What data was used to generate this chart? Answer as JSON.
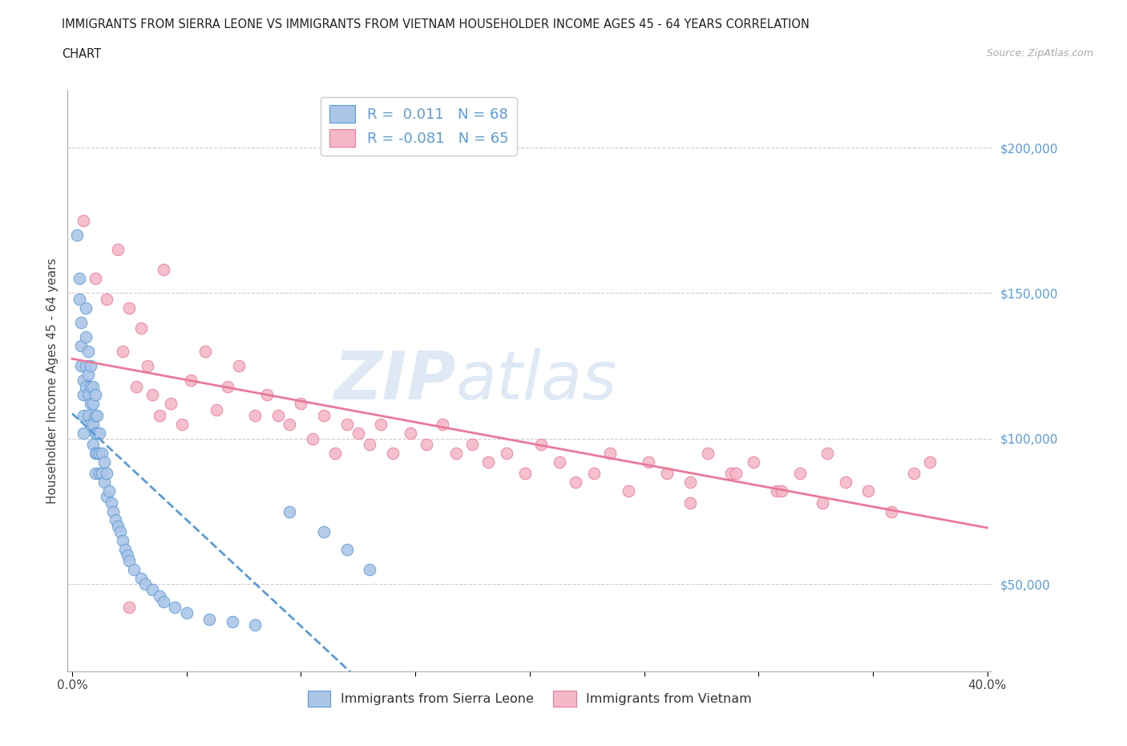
{
  "title_line1": "IMMIGRANTS FROM SIERRA LEONE VS IMMIGRANTS FROM VIETNAM HOUSEHOLDER INCOME AGES 45 - 64 YEARS CORRELATION",
  "title_line2": "CHART",
  "source_text": "Source: ZipAtlas.com",
  "ylabel": "Householder Income Ages 45 - 64 years",
  "xlim": [
    -0.002,
    0.402
  ],
  "ylim": [
    20000,
    220000
  ],
  "yticks": [
    50000,
    100000,
    150000,
    200000
  ],
  "ytick_labels": [
    "$50,000",
    "$100,000",
    "$150,000",
    "$200,000"
  ],
  "xticks": [
    0.0,
    0.05,
    0.1,
    0.15,
    0.2,
    0.25,
    0.3,
    0.35,
    0.4
  ],
  "xtick_labels": [
    "0.0%",
    "",
    "",
    "",
    "",
    "",
    "",
    "",
    "40.0%"
  ],
  "r_sierra": 0.011,
  "n_sierra": 68,
  "r_vietnam": -0.081,
  "n_vietnam": 65,
  "color_sierra_fill": "#adc6e8",
  "color_sierra_edge": "#5b9bd5",
  "color_vietnam_fill": "#f5b8c8",
  "color_vietnam_edge": "#e87a99",
  "color_trend_blue": "#5b9bd5",
  "color_trend_pink": "#e87a99",
  "background_color": "#ffffff",
  "watermark_text": "ZIP",
  "watermark_text2": "atlas",
  "legend_r1": "R =  0.011   N = 68",
  "legend_r2": "R = -0.081   N = 65",
  "legend_label_sl": "Immigrants from Sierra Leone",
  "legend_label_vn": "Immigrants from Vietnam",
  "sl_x": [
    0.002,
    0.003,
    0.003,
    0.004,
    0.004,
    0.004,
    0.005,
    0.005,
    0.005,
    0.005,
    0.006,
    0.006,
    0.006,
    0.006,
    0.007,
    0.007,
    0.007,
    0.007,
    0.008,
    0.008,
    0.008,
    0.008,
    0.009,
    0.009,
    0.009,
    0.009,
    0.01,
    0.01,
    0.01,
    0.01,
    0.01,
    0.011,
    0.011,
    0.011,
    0.012,
    0.012,
    0.012,
    0.013,
    0.013,
    0.014,
    0.014,
    0.015,
    0.015,
    0.016,
    0.017,
    0.018,
    0.019,
    0.02,
    0.021,
    0.022,
    0.023,
    0.024,
    0.025,
    0.027,
    0.03,
    0.032,
    0.035,
    0.038,
    0.04,
    0.045,
    0.05,
    0.06,
    0.07,
    0.08,
    0.095,
    0.11,
    0.12,
    0.13
  ],
  "sl_y": [
    170000,
    155000,
    148000,
    140000,
    132000,
    125000,
    120000,
    115000,
    108000,
    102000,
    145000,
    135000,
    125000,
    118000,
    130000,
    122000,
    115000,
    108000,
    125000,
    118000,
    112000,
    105000,
    118000,
    112000,
    105000,
    98000,
    115000,
    108000,
    102000,
    95000,
    88000,
    108000,
    102000,
    95000,
    102000,
    95000,
    88000,
    95000,
    88000,
    92000,
    85000,
    88000,
    80000,
    82000,
    78000,
    75000,
    72000,
    70000,
    68000,
    65000,
    62000,
    60000,
    58000,
    55000,
    52000,
    50000,
    48000,
    46000,
    44000,
    42000,
    40000,
    38000,
    37000,
    36000,
    75000,
    68000,
    62000,
    55000
  ],
  "vn_x": [
    0.005,
    0.01,
    0.015,
    0.02,
    0.022,
    0.025,
    0.028,
    0.03,
    0.033,
    0.035,
    0.038,
    0.04,
    0.043,
    0.048,
    0.052,
    0.058,
    0.063,
    0.068,
    0.073,
    0.08,
    0.085,
    0.09,
    0.095,
    0.1,
    0.105,
    0.11,
    0.115,
    0.12,
    0.125,
    0.13,
    0.135,
    0.14,
    0.148,
    0.155,
    0.162,
    0.168,
    0.175,
    0.182,
    0.19,
    0.198,
    0.205,
    0.213,
    0.22,
    0.228,
    0.235,
    0.243,
    0.252,
    0.26,
    0.27,
    0.278,
    0.288,
    0.298,
    0.308,
    0.318,
    0.328,
    0.338,
    0.348,
    0.358,
    0.368,
    0.375,
    0.33,
    0.31,
    0.29,
    0.27,
    0.025
  ],
  "vn_y": [
    175000,
    155000,
    148000,
    165000,
    130000,
    145000,
    118000,
    138000,
    125000,
    115000,
    108000,
    158000,
    112000,
    105000,
    120000,
    130000,
    110000,
    118000,
    125000,
    108000,
    115000,
    108000,
    105000,
    112000,
    100000,
    108000,
    95000,
    105000,
    102000,
    98000,
    105000,
    95000,
    102000,
    98000,
    105000,
    95000,
    98000,
    92000,
    95000,
    88000,
    98000,
    92000,
    85000,
    88000,
    95000,
    82000,
    92000,
    88000,
    85000,
    95000,
    88000,
    92000,
    82000,
    88000,
    78000,
    85000,
    82000,
    75000,
    88000,
    92000,
    95000,
    82000,
    88000,
    78000,
    42000
  ]
}
